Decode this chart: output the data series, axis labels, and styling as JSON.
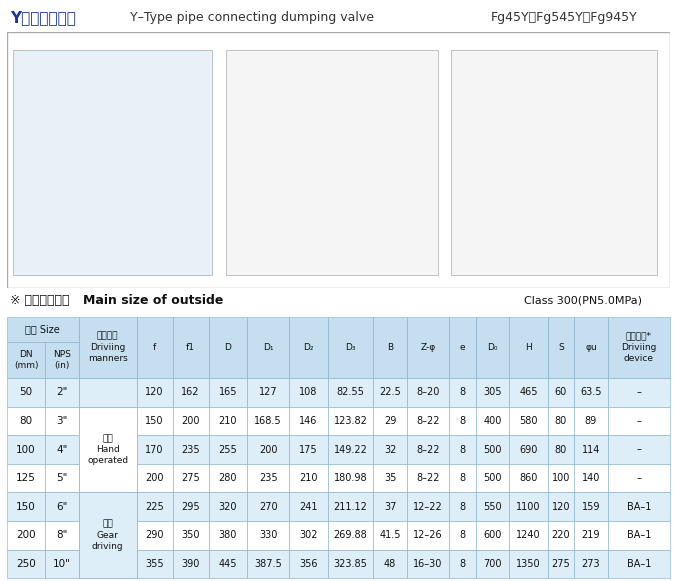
{
  "title_cn": "Y型管接放料阀",
  "title_en": "Y–Type pipe connecting dumping valve",
  "model": "Fg45Y、Fg545Y、Fg945Y",
  "section_title": "※ 主要外形尺寸 Main size of outside",
  "class_info": "Class 300(PN5.0MPa)",
  "header": {
    "size_top": "规格 Size",
    "dn": "DN\n(mm)",
    "nps": "NPS\n(in)",
    "drive_top": "驱动方式\nDriviing\nmanners",
    "cols": [
      "f",
      "f1",
      "D",
      "D₁",
      "D₂",
      "D₃",
      "B",
      "Z-φ",
      "e",
      "D₀",
      "H",
      "S",
      "φu",
      "驱动装置*\nDriviing\ndevice"
    ]
  },
  "drive_groups": [
    {
      "rows": [
        0
      ],
      "text": ""
    },
    {
      "rows": [
        1,
        2,
        3
      ],
      "text": "手动\nHand\noperated"
    },
    {
      "rows": [
        4,
        5,
        6
      ],
      "text": "齿动\nGear\ndriving"
    }
  ],
  "rows": [
    [
      "50",
      "2\"",
      "120",
      "162",
      "165",
      "127",
      "108",
      "82.55",
      "22.5",
      "8–20",
      "8",
      "305",
      "465",
      "60",
      "63.5",
      "–"
    ],
    [
      "80",
      "3\"",
      "150",
      "200",
      "210",
      "168.5",
      "146",
      "123.82",
      "29",
      "8–22",
      "8",
      "400",
      "580",
      "80",
      "89",
      "–"
    ],
    [
      "100",
      "4\"",
      "170",
      "235",
      "255",
      "200",
      "175",
      "149.22",
      "32",
      "8–22",
      "8",
      "500",
      "690",
      "80",
      "114",
      "–"
    ],
    [
      "125",
      "5\"",
      "200",
      "275",
      "280",
      "235",
      "210",
      "180.98",
      "35",
      "8–22",
      "8",
      "500",
      "860",
      "100",
      "140",
      "–"
    ],
    [
      "150",
      "6\"",
      "225",
      "295",
      "320",
      "270",
      "241",
      "211.12",
      "37",
      "12–22",
      "8",
      "550",
      "1100",
      "120",
      "159",
      "BA–1"
    ],
    [
      "200",
      "8\"",
      "290",
      "350",
      "380",
      "330",
      "302",
      "269.88",
      "41.5",
      "12–26",
      "8",
      "600",
      "1240",
      "220",
      "219",
      "BA–1"
    ],
    [
      "250",
      "10\"",
      "355",
      "390",
      "445",
      "387.5",
      "356",
      "323.85",
      "48",
      "16–30",
      "8",
      "700",
      "1350",
      "275",
      "273",
      "BA–1"
    ]
  ],
  "col_widths_rel": [
    3.2,
    2.8,
    4.8,
    3.0,
    3.0,
    3.2,
    3.5,
    3.2,
    3.8,
    2.8,
    3.5,
    2.2,
    2.8,
    3.2,
    2.2,
    2.8,
    5.2
  ],
  "header_bg": "#c6dff0",
  "row_bg_light": "#deeef8",
  "row_bg_white": "#ffffff",
  "border_color": "#7baec8",
  "title_blue": "#1a35a0",
  "img_border": "#aaaaaa",
  "img_bg": "#f0f0f0"
}
